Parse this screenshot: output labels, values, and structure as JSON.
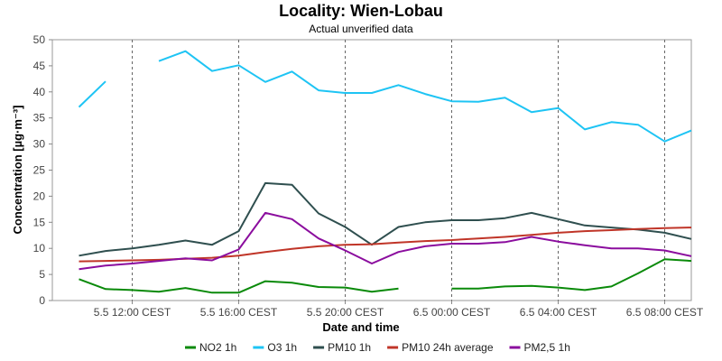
{
  "chart_data": {
    "type": "line",
    "title": "Locality: Wien-Lobau",
    "subtitle": "Actual unverified data",
    "xlabel": "Date and time",
    "ylabel": "Concentration [µg·m⁻³]",
    "ylim": [
      0,
      50
    ],
    "yticks": [
      0,
      5,
      10,
      15,
      20,
      25,
      30,
      35,
      40,
      45,
      50
    ],
    "xlim": [
      "5.5 09:00 CEST",
      "6.5 09:00 CEST"
    ],
    "xticks": [
      {
        "hour": 3,
        "label": "5.5 12:00 CEST"
      },
      {
        "hour": 7,
        "label": "5.5 16:00 CEST"
      },
      {
        "hour": 11,
        "label": "5.5 20:00 CEST"
      },
      {
        "hour": 15,
        "label": "6.5 00:00 CEST"
      },
      {
        "hour": 19,
        "label": "6.5 04:00 CEST"
      },
      {
        "hour": 23,
        "label": "6.5 08:00 CEST"
      }
    ],
    "grid": true,
    "legend_position": "bottom",
    "x_hours": [
      "5.5 10:00 CEST",
      "5.5 11:00 CEST",
      "5.5 12:00 CEST",
      "5.5 13:00 CEST",
      "5.5 14:00 CEST",
      "5.5 15:00 CEST",
      "5.5 16:00 CEST",
      "5.5 17:00 CEST",
      "5.5 18:00 CEST",
      "5.5 19:00 CEST",
      "5.5 20:00 CEST",
      "5.5 21:00 CEST",
      "5.5 22:00 CEST",
      "5.5 23:00 CEST",
      "6.5 00:00 CEST",
      "6.5 01:00 CEST",
      "6.5 02:00 CEST",
      "6.5 03:00 CEST",
      "6.5 04:00 CEST",
      "6.5 05:00 CEST",
      "6.5 06:00 CEST",
      "6.5 07:00 CEST",
      "6.5 08:00 CEST"
    ],
    "series": [
      {
        "name": "NO2 1h",
        "color": "#0a8a0a",
        "values": [
          4.1,
          2.2,
          2.0,
          1.7,
          2.4,
          1.5,
          1.5,
          3.7,
          3.4,
          2.6,
          2.5,
          1.7,
          2.3,
          null,
          2.3,
          2.3,
          2.7,
          2.8,
          2.5,
          2.0,
          2.7,
          5.2,
          7.9
        ]
      },
      {
        "name": "O3 1h",
        "color": "#1ec4f4",
        "values": [
          37.1,
          42.0,
          null,
          45.9,
          47.8,
          44.0,
          45.1,
          41.9,
          43.9,
          40.3,
          39.8,
          39.8,
          41.3,
          39.6,
          38.2,
          38.1,
          38.9,
          36.1,
          36.9,
          32.8,
          34.2,
          33.7,
          30.5
        ]
      },
      {
        "name": "PM10 1h",
        "color": "#2f4f4f",
        "values": [
          8.6,
          9.5,
          10.0,
          10.7,
          11.5,
          10.7,
          13.3,
          22.5,
          22.2,
          16.7,
          14.1,
          10.7,
          14.1,
          15.0,
          15.4,
          15.4,
          15.8,
          16.8,
          15.6,
          14.4,
          14.0,
          13.6,
          13.0
        ]
      },
      {
        "name": "PM10 24h average",
        "color": "#c03528",
        "values": [
          7.5,
          7.6,
          7.7,
          7.8,
          8.0,
          8.2,
          8.6,
          9.3,
          9.9,
          10.4,
          10.7,
          10.8,
          11.1,
          11.4,
          11.6,
          11.9,
          12.2,
          12.6,
          13.0,
          13.3,
          13.5,
          13.7,
          13.9
        ]
      },
      {
        "name": "PM2,5 1h",
        "color": "#8b0d9e",
        "values": [
          6.0,
          6.7,
          7.1,
          7.6,
          8.1,
          7.7,
          9.8,
          16.8,
          15.6,
          11.9,
          9.6,
          7.1,
          9.3,
          10.4,
          10.9,
          10.9,
          11.2,
          12.2,
          11.3,
          10.6,
          10.0,
          10.0,
          9.6
        ]
      }
    ],
    "series_tail": [
      {
        "name": "NO2 1h",
        "value": 7.6
      },
      {
        "name": "O3 1h",
        "value": 32.6
      },
      {
        "name": "PM10 1h",
        "value": 11.8
      },
      {
        "name": "PM10 24h average",
        "value": 14.0
      },
      {
        "name": "PM2,5 1h",
        "value": 8.5
      }
    ]
  }
}
